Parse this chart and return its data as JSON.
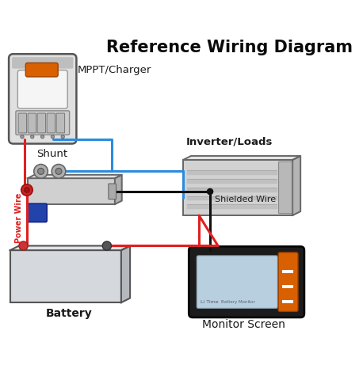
{
  "title": "Reference Wiring Diagram",
  "title_fontsize": 15,
  "background_color": "#ffffff",
  "wire_red": "#e02020",
  "wire_blue": "#2b8be0",
  "wire_black": "#111111",
  "label_mppt": "MPPT/Charger",
  "label_shunt": "Shunt",
  "label_inverter": "Inverter/Loads",
  "label_battery": "Battery",
  "label_monitor": "Monitor Screen",
  "label_power_wire": "Power Wire",
  "label_shielded_wire": "Shielded Wire",
  "figsize": [
    4.58,
    4.8
  ],
  "dpi": 100
}
